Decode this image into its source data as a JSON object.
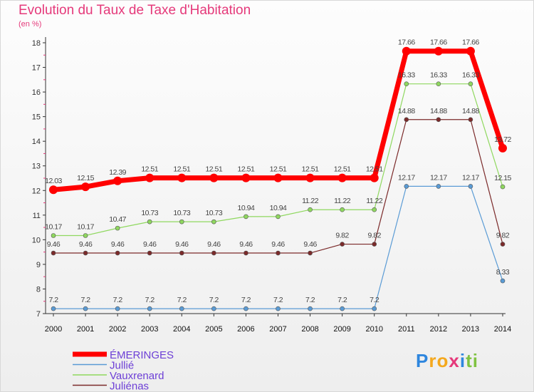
{
  "header": {
    "title": "Evolution du Taux de Taxe d'Habitation",
    "subtitle": "(en %)"
  },
  "logo": {
    "text": "Proxiti",
    "letters": [
      "P",
      "r",
      "o",
      "x",
      "i",
      "t",
      "i"
    ],
    "colors": [
      "#2e86de",
      "#f4a81d",
      "#f4a81d",
      "#e5397a",
      "#2e86de",
      "#7fc241",
      "#7fc241"
    ]
  },
  "chart_data": {
    "type": "line",
    "x": [
      "2000",
      "2001",
      "2002",
      "2003",
      "2004",
      "2005",
      "2006",
      "2007",
      "2008",
      "2009",
      "2010",
      "2011",
      "2012",
      "2013",
      "2014"
    ],
    "ylim": [
      7,
      18
    ],
    "yticks": [
      "7",
      "8",
      "9",
      "10",
      "11",
      "12",
      "13",
      "14",
      "15",
      "16",
      "17",
      "18"
    ],
    "grid": false,
    "legend_position": "bottom-left",
    "series": [
      {
        "name": "ÉMERINGES",
        "color": "#ff0000",
        "width": 7,
        "values": [
          12.03,
          12.15,
          12.39,
          12.51,
          12.51,
          12.51,
          12.51,
          12.51,
          12.51,
          12.51,
          12.51,
          17.66,
          17.66,
          17.66,
          13.72
        ],
        "labels": [
          "12.03",
          "12.15",
          "12.39",
          "12.51",
          "12.51",
          "12.51",
          "12.51",
          "12.51",
          "12.51",
          "12.51",
          "12.51",
          "17.66",
          "17.66",
          "17.66",
          "13.72"
        ]
      },
      {
        "name": "Jullié",
        "color": "#5a9bd5",
        "width": 1.2,
        "values": [
          7.2,
          7.2,
          7.2,
          7.2,
          7.2,
          7.2,
          7.2,
          7.2,
          7.2,
          7.2,
          7.2,
          12.17,
          12.17,
          12.17,
          8.33
        ],
        "labels": [
          "7.2",
          "7.2",
          "7.2",
          "7.2",
          "7.2",
          "7.2",
          "7.2",
          "7.2",
          "7.2",
          "7.2",
          "7.2",
          "12.17",
          "12.17",
          "12.17",
          "8.33"
        ]
      },
      {
        "name": "Vauxrenard",
        "color": "#8fd85f",
        "width": 1.2,
        "values": [
          10.17,
          10.17,
          10.47,
          10.73,
          10.73,
          10.73,
          10.94,
          10.94,
          11.22,
          11.22,
          11.22,
          16.33,
          16.33,
          16.33,
          12.15
        ],
        "labels": [
          "10.17",
          "10.17",
          "10.47",
          "10.73",
          "10.73",
          "10.73",
          "10.94",
          "10.94",
          "11.22",
          "11.22",
          "11.22",
          "16.33",
          "16.33",
          "16.33",
          "12.15"
        ]
      },
      {
        "name": "Juliénas",
        "color": "#7b2a2a",
        "width": 1.2,
        "values": [
          9.46,
          9.46,
          9.46,
          9.46,
          9.46,
          9.46,
          9.46,
          9.46,
          9.46,
          9.82,
          9.82,
          14.88,
          14.88,
          14.88,
          9.82
        ],
        "labels": [
          "9.46",
          "9.46",
          "9.46",
          "9.46",
          "9.46",
          "9.46",
          "9.46",
          "9.46",
          "9.46",
          "9.82",
          "9.82",
          "14.88",
          "14.88",
          "14.88",
          "9.82"
        ]
      }
    ]
  }
}
